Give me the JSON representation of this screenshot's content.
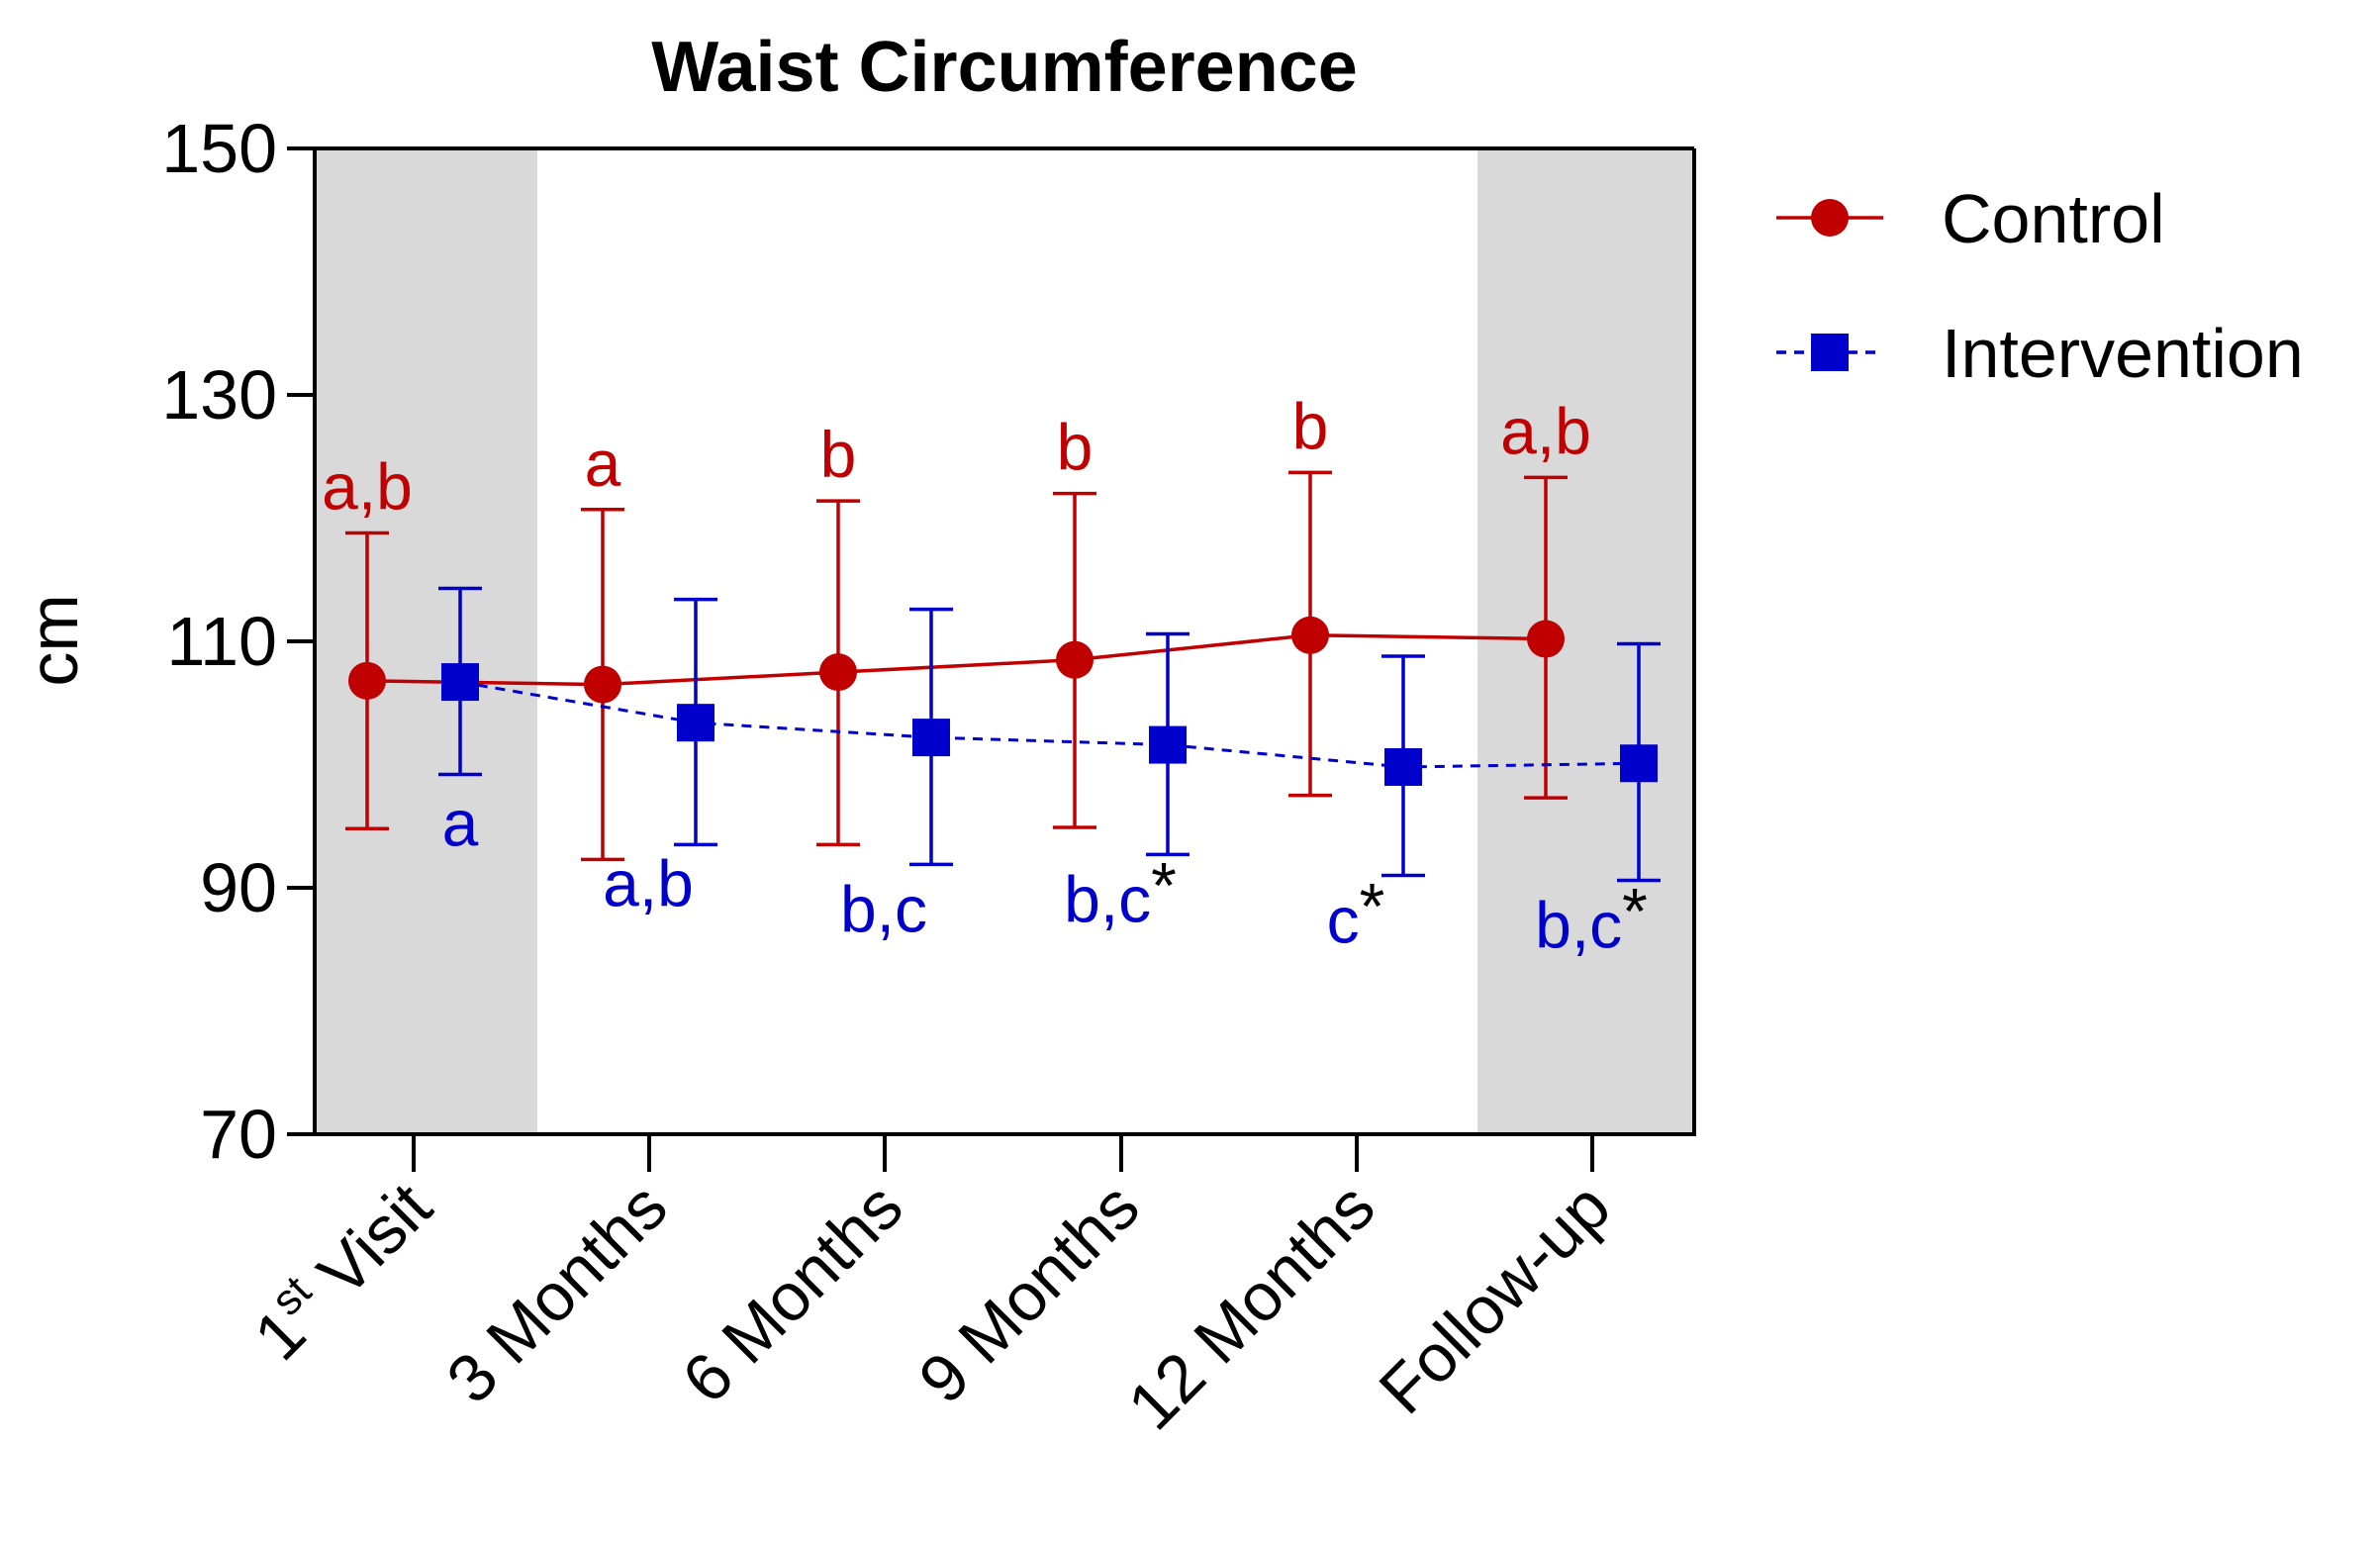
{
  "chart_data": {
    "type": "line",
    "title": "Waist Circumference",
    "xlabel": "",
    "ylabel": "cm",
    "ylim": [
      70,
      150
    ],
    "yticks": [
      70,
      90,
      110,
      130,
      150
    ],
    "categories": [
      {
        "base": "1",
        "sup": "st",
        "rest": " Visit"
      },
      {
        "base": "3 Months",
        "sup": "",
        "rest": ""
      },
      {
        "base": "6 Months",
        "sup": "",
        "rest": ""
      },
      {
        "base": "9 Months",
        "sup": "",
        "rest": ""
      },
      {
        "base": "12 Months",
        "sup": "",
        "rest": ""
      },
      {
        "base": "Follow-up",
        "sup": "",
        "rest": ""
      }
    ],
    "shaded_categories": [
      0,
      5
    ],
    "series": [
      {
        "name": "Control",
        "color": "#c00000",
        "marker": "circle",
        "line": "solid",
        "values": [
          106.8,
          106.5,
          107.5,
          108.5,
          110.5,
          110.2
        ],
        "err_low": [
          94.8,
          92.3,
          93.5,
          94.9,
          97.5,
          97.3
        ],
        "err_high": [
          118.8,
          120.7,
          121.4,
          122.0,
          123.7,
          123.3
        ],
        "labels": [
          "a,b",
          "a",
          "b",
          "b",
          "b",
          "a,b"
        ]
      },
      {
        "name": "Intervention",
        "color": "#0000cc",
        "marker": "square",
        "line": "dashed",
        "values": [
          106.7,
          103.4,
          102.2,
          101.6,
          99.8,
          100.1
        ],
        "err_low": [
          99.2,
          93.5,
          91.9,
          92.7,
          91.0,
          90.6
        ],
        "err_high": [
          114.3,
          113.4,
          112.6,
          110.6,
          108.8,
          109.8
        ],
        "labels": [
          "a",
          "a,b",
          "b,c",
          "b,c",
          "c",
          "b,c"
        ],
        "label_stars": [
          "",
          "",
          "",
          "*",
          "*",
          "*"
        ]
      }
    ],
    "legend_position": "top-right"
  }
}
